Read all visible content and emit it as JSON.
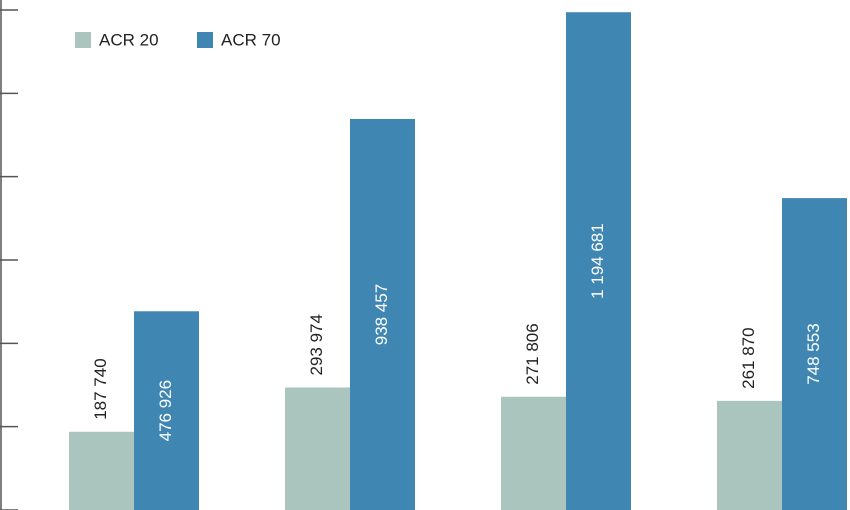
{
  "chart_data": {
    "type": "bar",
    "categories": [
      null,
      null,
      null,
      null
    ],
    "series": [
      {
        "name": "ACR 20",
        "color": "#a9c5bd",
        "values": [
          187740,
          293974,
          271806,
          261870
        ],
        "value_labels": [
          "187 740",
          "293 974",
          "271 806",
          "261 870"
        ]
      },
      {
        "name": "ACR 70",
        "color": "#3f87b2",
        "values": [
          476926,
          938457,
          1194681,
          748553
        ],
        "value_labels": [
          "476 926",
          "938 457",
          "1 194 681",
          "748 553"
        ]
      }
    ],
    "ylim": [
      0,
      1200000
    ],
    "yticks": [
      0,
      200000,
      400000,
      600000,
      800000,
      1000000,
      1200000
    ],
    "legend": "top-left"
  }
}
